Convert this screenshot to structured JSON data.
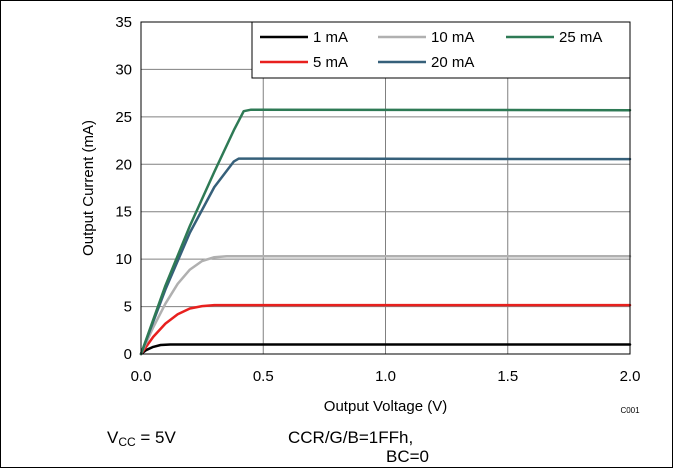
{
  "chart_data": {
    "type": "line",
    "xlabel": "Output Voltage (V)",
    "ylabel": "Output Current (mA)",
    "xlim": [
      0,
      2.0
    ],
    "ylim": [
      0,
      35
    ],
    "x_ticks": [
      0,
      0.5,
      1.0,
      1.5,
      2.0
    ],
    "x_tick_labels": [
      "0.0",
      "0.5",
      "1.0",
      "1.5",
      "2.0"
    ],
    "y_ticks": [
      0,
      5,
      10,
      15,
      20,
      25,
      30,
      35
    ],
    "y_tick_labels": [
      "0",
      "5",
      "10",
      "15",
      "20",
      "25",
      "30",
      "35"
    ],
    "grid": true,
    "legend_position": "top-right",
    "figure_code": "C001",
    "series": [
      {
        "name": "1 mA",
        "color": "#000000",
        "points": [
          [
            0,
            0
          ],
          [
            0.02,
            0.4
          ],
          [
            0.05,
            0.75
          ],
          [
            0.08,
            0.95
          ],
          [
            0.12,
            1.0
          ],
          [
            2.0,
            1.0
          ]
        ]
      },
      {
        "name": "5 mA",
        "color": "#e8201e",
        "points": [
          [
            0,
            0
          ],
          [
            0.05,
            1.8
          ],
          [
            0.1,
            3.2
          ],
          [
            0.15,
            4.2
          ],
          [
            0.2,
            4.8
          ],
          [
            0.25,
            5.05
          ],
          [
            0.3,
            5.15
          ],
          [
            2.0,
            5.15
          ]
        ]
      },
      {
        "name": "10 mA",
        "color": "#b0b0b0",
        "points": [
          [
            0,
            0
          ],
          [
            0.05,
            2.8
          ],
          [
            0.1,
            5.3
          ],
          [
            0.15,
            7.4
          ],
          [
            0.2,
            8.9
          ],
          [
            0.25,
            9.8
          ],
          [
            0.3,
            10.2
          ],
          [
            0.35,
            10.3
          ],
          [
            2.0,
            10.3
          ]
        ]
      },
      {
        "name": "20 mA",
        "color": "#36607a",
        "points": [
          [
            0,
            0
          ],
          [
            0.1,
            6.8
          ],
          [
            0.2,
            12.8
          ],
          [
            0.3,
            17.6
          ],
          [
            0.38,
            20.3
          ],
          [
            0.4,
            20.6
          ],
          [
            2.0,
            20.55
          ]
        ]
      },
      {
        "name": "25 mA",
        "color": "#2e7a55",
        "points": [
          [
            0,
            0
          ],
          [
            0.1,
            7.2
          ],
          [
            0.2,
            13.5
          ],
          [
            0.3,
            19.2
          ],
          [
            0.38,
            23.6
          ],
          [
            0.42,
            25.6
          ],
          [
            0.45,
            25.75
          ],
          [
            2.0,
            25.7
          ]
        ]
      }
    ],
    "legend_order": [
      "1 mA",
      "10 mA",
      "25 mA",
      "5 mA",
      "20 mA"
    ]
  },
  "conditions": {
    "vcc_symbol": "V",
    "vcc_subscript": "CC",
    "vcc_value": " = 5V",
    "ccr": "CCR/G/B=1FFh,",
    "bc": "BC=0"
  }
}
